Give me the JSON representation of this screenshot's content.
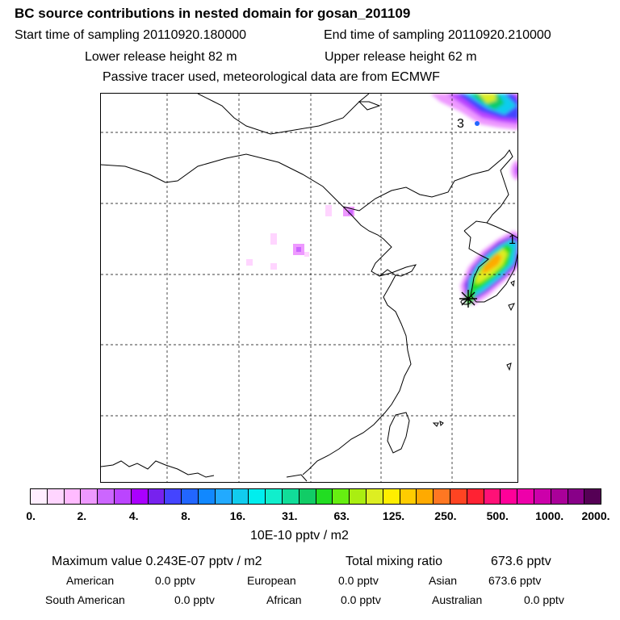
{
  "header": {
    "title": "BC  source contributions in nested domain for gosan_201109",
    "start_label": "Start time of sampling 20110920.180000",
    "end_label": "End time of sampling 20110920.210000",
    "lower_label": "Lower release height   82 m",
    "upper_label": "Upper release height   62 m",
    "tracer_note": "Passive tracer used, meteorological data are from ECMWF"
  },
  "map": {
    "labels": {
      "region_3": "3",
      "region_1": "1"
    }
  },
  "colorbar": {
    "colors": [
      "#ffeeff",
      "#ffd5ff",
      "#ffbbff",
      "#ee99ff",
      "#cc66ff",
      "#bb44ff",
      "#aa00ff",
      "#7722ee",
      "#4444ff",
      "#2266ff",
      "#1188ff",
      "#22aaff",
      "#11ccee",
      "#00eeee",
      "#11eecc",
      "#11dd99",
      "#11cc66",
      "#22dd22",
      "#66ee11",
      "#aaee11",
      "#ddee22",
      "#ffee00",
      "#ffcc00",
      "#ffaa00",
      "#ff7722",
      "#ff4422",
      "#ff2233",
      "#ff1177",
      "#ff0099",
      "#ee00aa",
      "#cc00aa",
      "#aa0099",
      "#880088",
      "#550055"
    ],
    "ticks": [
      "0.",
      "2.",
      "4.",
      "8.",
      "16.",
      "31.",
      "63.",
      "125.",
      "250.",
      "500.",
      "1000.",
      "2000."
    ],
    "unit": "10E-10 pptv / m2"
  },
  "footer": {
    "max_label": "Maximum value  0.243E-07 pptv / m2",
    "total_label": "Total mixing ratio",
    "total_value": "673.6 pptv",
    "american_label": "American",
    "american_value": "0.0 pptv",
    "european_label": "European",
    "european_value": "0.0 pptv",
    "asian_label": "Asian",
    "asian_value": "673.6 pptv",
    "south_american_label": "South American",
    "south_american_value": "0.0 pptv",
    "african_label": "African",
    "african_value": "0.0 pptv",
    "australian_label": "Australian",
    "australian_value": "0.0 pptv"
  }
}
